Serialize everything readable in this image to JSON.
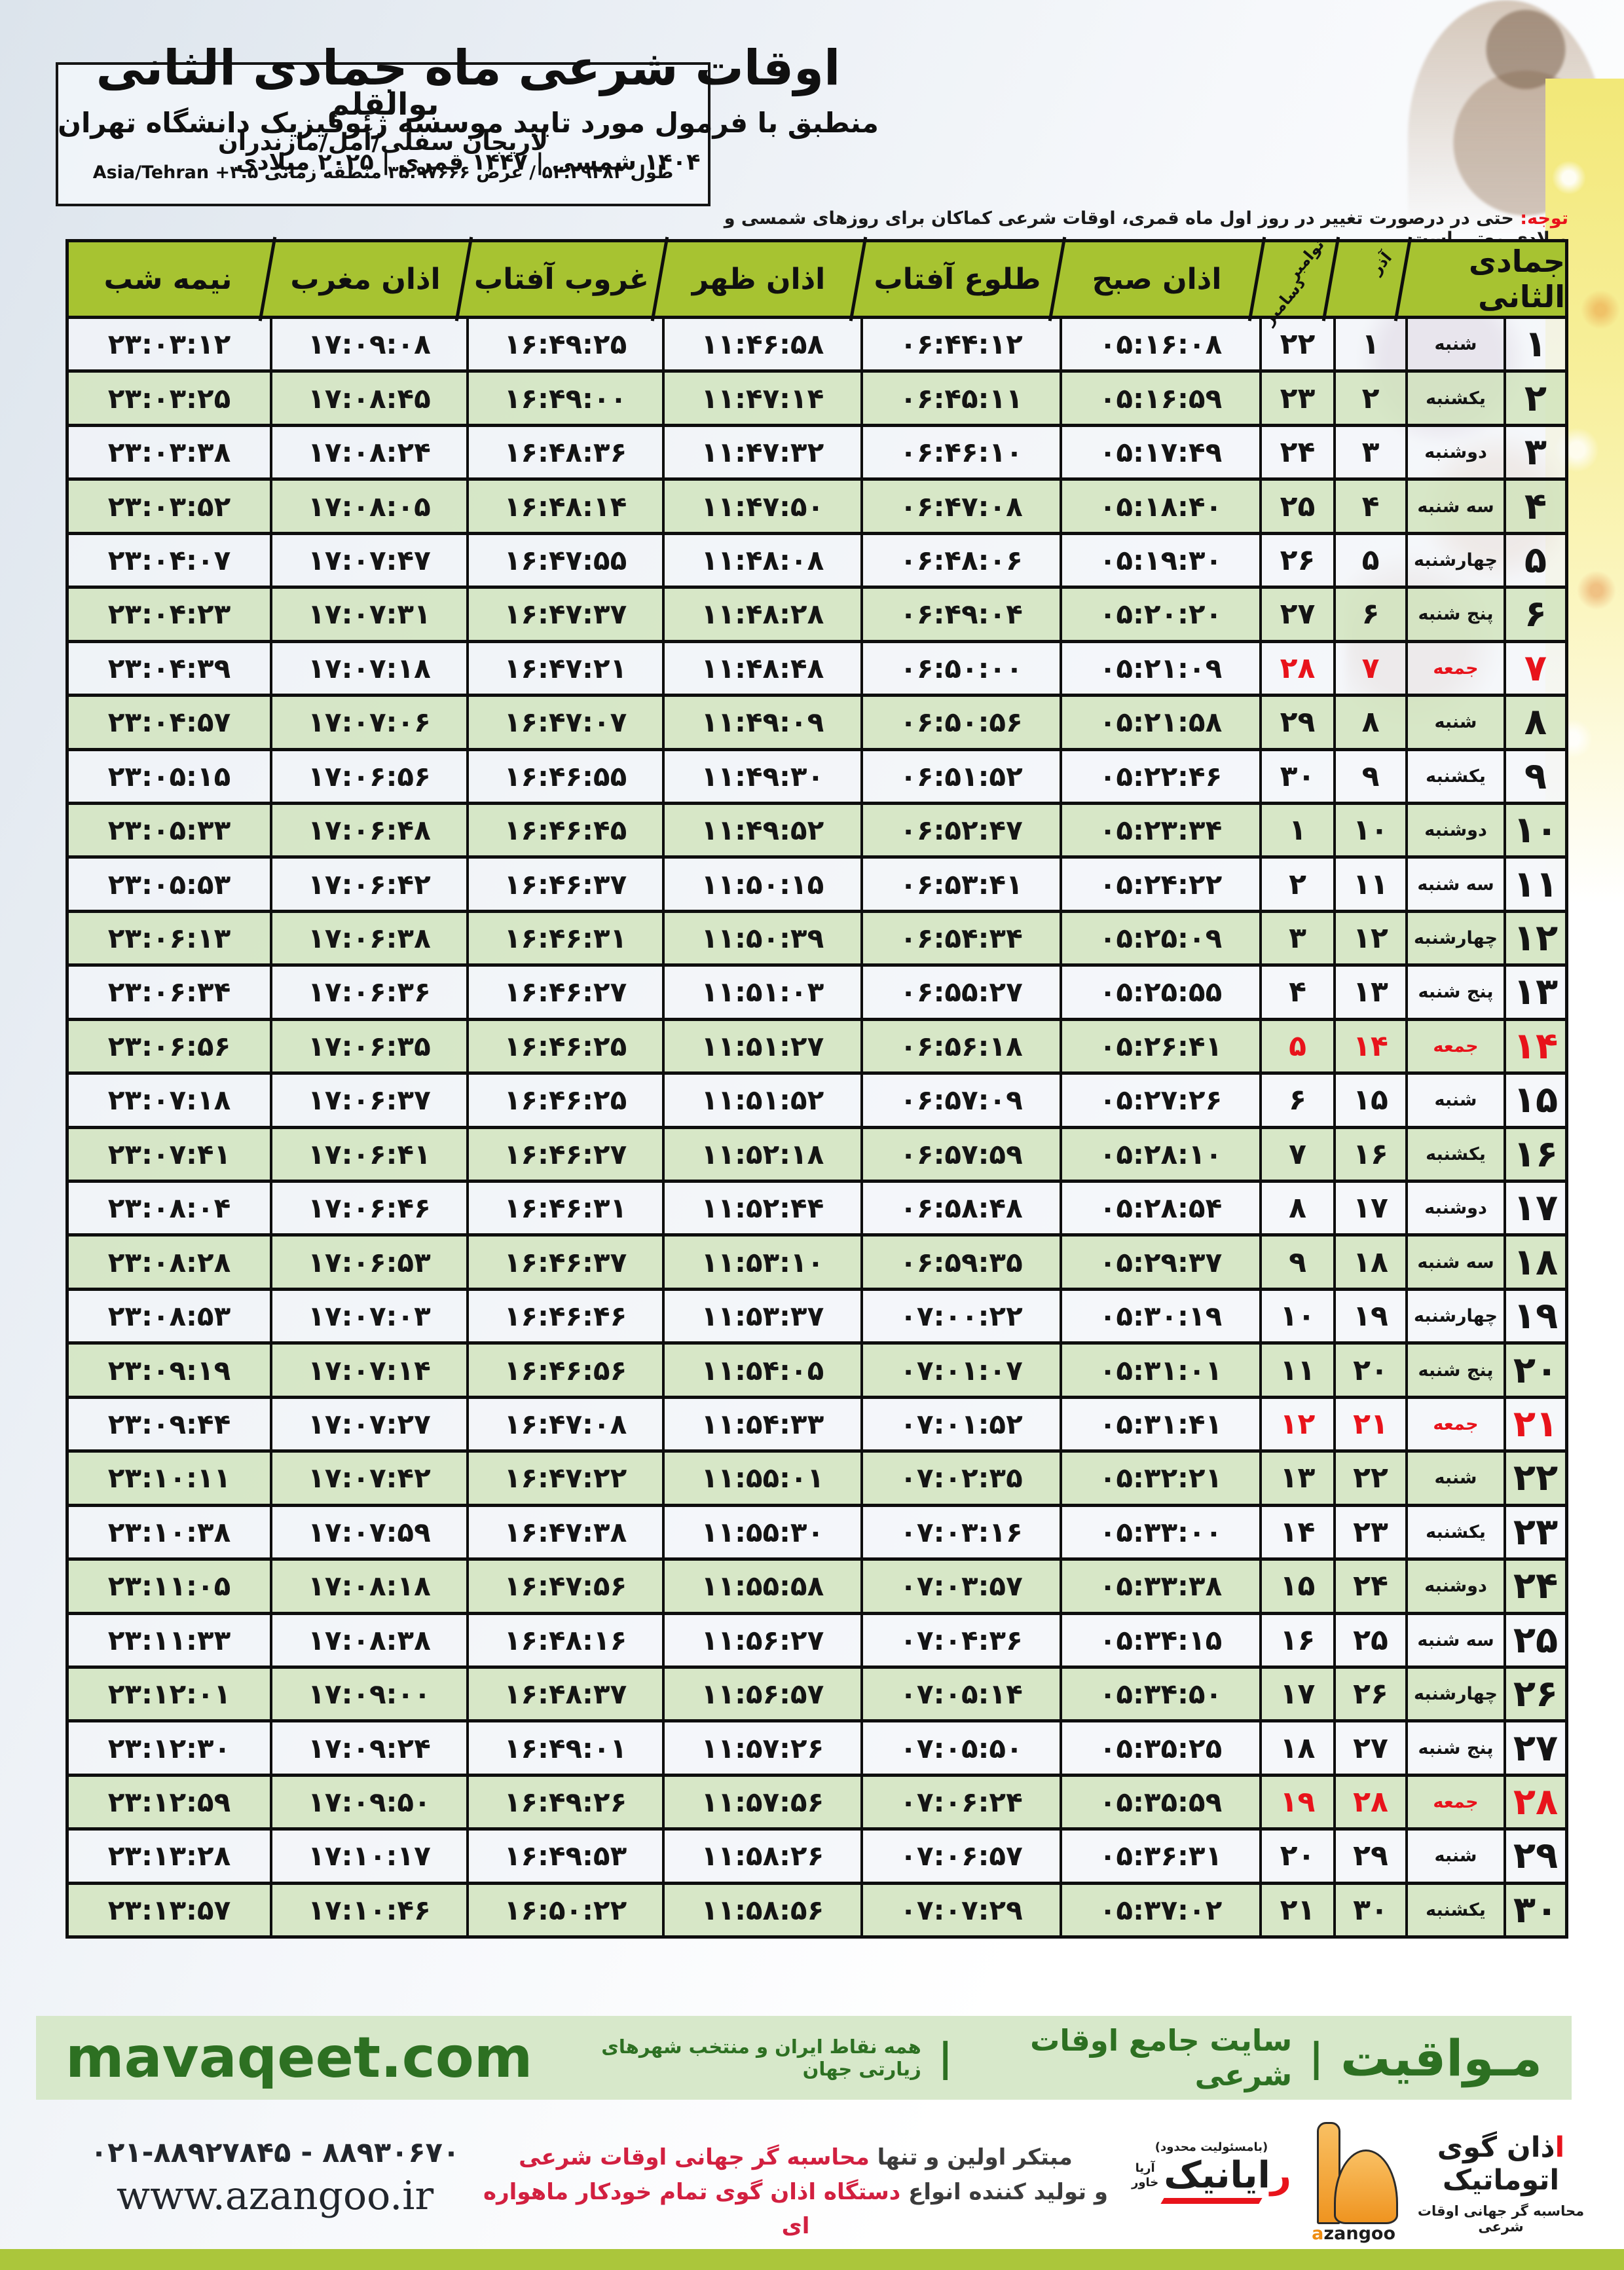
{
  "title_block": {
    "title": "اوقات شرعی ماه جمادی الثانی",
    "subtitle": "منطبق با فرمول مورد تایید موسسه ژئوفیزیک دانشگاه تهران",
    "date_line": "۱۴۰۴ شمسی | ۱۴۴۷ قمری | ۲۰۲۵ میلادی"
  },
  "location_box": {
    "name": "بوالقلم",
    "region": "لاریجان سفلی/آمل/مازندران",
    "coords_rtl": "طول ۵۲.۲۹۴۸۳ / عرض ۳۵.۹۷۶۶۶ منطقه زمانی",
    "coords_ltr": "Asia/Tehran +۳.۵"
  },
  "notice": {
    "label": "توجه:",
    "text": " حتی در درصورت تغییر در روز اول ماه قمری، اوقات شرعی کماکان برای روزهای شمسی و میلادی معتبر است."
  },
  "table": {
    "headers": {
      "month": "جمادی الثانی",
      "azar": "آذر",
      "nov": "نوامبر",
      "dec": "دسامبر",
      "sobh": "اذان صبح",
      "tolu": "طلوع آفتاب",
      "zohr": "اذان ظهر",
      "ghorub": "غروب آفتاب",
      "maghreb": "اذان مغرب",
      "nimeshab": "نیمه شب"
    },
    "rows": [
      {
        "day": "۱",
        "weekday": "شنبه",
        "azar": "۱",
        "miladi": "۲۲",
        "sobh": "۰۵:۱۶:۰۸",
        "tolu": "۰۶:۴۴:۱۲",
        "zohr": "۱۱:۴۶:۵۸",
        "ghorub": "۱۶:۴۹:۲۵",
        "maghreb": "۱۷:۰۹:۰۸",
        "nimeshab": "۲۳:۰۳:۱۲",
        "friday": false
      },
      {
        "day": "۲",
        "weekday": "یکشنبه",
        "azar": "۲",
        "miladi": "۲۳",
        "sobh": "۰۵:۱۶:۵۹",
        "tolu": "۰۶:۴۵:۱۱",
        "zohr": "۱۱:۴۷:۱۴",
        "ghorub": "۱۶:۴۹:۰۰",
        "maghreb": "۱۷:۰۸:۴۵",
        "nimeshab": "۲۳:۰۳:۲۵",
        "friday": false
      },
      {
        "day": "۳",
        "weekday": "دوشنبه",
        "azar": "۳",
        "miladi": "۲۴",
        "sobh": "۰۵:۱۷:۴۹",
        "tolu": "۰۶:۴۶:۱۰",
        "zohr": "۱۱:۴۷:۳۲",
        "ghorub": "۱۶:۴۸:۳۶",
        "maghreb": "۱۷:۰۸:۲۴",
        "nimeshab": "۲۳:۰۳:۳۸",
        "friday": false
      },
      {
        "day": "۴",
        "weekday": "سه شنبه",
        "azar": "۴",
        "miladi": "۲۵",
        "sobh": "۰۵:۱۸:۴۰",
        "tolu": "۰۶:۴۷:۰۸",
        "zohr": "۱۱:۴۷:۵۰",
        "ghorub": "۱۶:۴۸:۱۴",
        "maghreb": "۱۷:۰۸:۰۵",
        "nimeshab": "۲۳:۰۳:۵۲",
        "friday": false
      },
      {
        "day": "۵",
        "weekday": "چهارشنبه",
        "azar": "۵",
        "miladi": "۲۶",
        "sobh": "۰۵:۱۹:۳۰",
        "tolu": "۰۶:۴۸:۰۶",
        "zohr": "۱۱:۴۸:۰۸",
        "ghorub": "۱۶:۴۷:۵۵",
        "maghreb": "۱۷:۰۷:۴۷",
        "nimeshab": "۲۳:۰۴:۰۷",
        "friday": false
      },
      {
        "day": "۶",
        "weekday": "پنج شنبه",
        "azar": "۶",
        "miladi": "۲۷",
        "sobh": "۰۵:۲۰:۲۰",
        "tolu": "۰۶:۴۹:۰۴",
        "zohr": "۱۱:۴۸:۲۸",
        "ghorub": "۱۶:۴۷:۳۷",
        "maghreb": "۱۷:۰۷:۳۱",
        "nimeshab": "۲۳:۰۴:۲۳",
        "friday": false
      },
      {
        "day": "۷",
        "weekday": "جمعه",
        "azar": "۷",
        "miladi": "۲۸",
        "sobh": "۰۵:۲۱:۰۹",
        "tolu": "۰۶:۵۰:۰۰",
        "zohr": "۱۱:۴۸:۴۸",
        "ghorub": "۱۶:۴۷:۲۱",
        "maghreb": "۱۷:۰۷:۱۸",
        "nimeshab": "۲۳:۰۴:۳۹",
        "friday": true
      },
      {
        "day": "۸",
        "weekday": "شنبه",
        "azar": "۸",
        "miladi": "۲۹",
        "sobh": "۰۵:۲۱:۵۸",
        "tolu": "۰۶:۵۰:۵۶",
        "zohr": "۱۱:۴۹:۰۹",
        "ghorub": "۱۶:۴۷:۰۷",
        "maghreb": "۱۷:۰۷:۰۶",
        "nimeshab": "۲۳:۰۴:۵۷",
        "friday": false
      },
      {
        "day": "۹",
        "weekday": "یکشنبه",
        "azar": "۹",
        "miladi": "۳۰",
        "sobh": "۰۵:۲۲:۴۶",
        "tolu": "۰۶:۵۱:۵۲",
        "zohr": "۱۱:۴۹:۳۰",
        "ghorub": "۱۶:۴۶:۵۵",
        "maghreb": "۱۷:۰۶:۵۶",
        "nimeshab": "۲۳:۰۵:۱۵",
        "friday": false
      },
      {
        "day": "۱۰",
        "weekday": "دوشنبه",
        "azar": "۱۰",
        "miladi": "۱",
        "sobh": "۰۵:۲۳:۳۴",
        "tolu": "۰۶:۵۲:۴۷",
        "zohr": "۱۱:۴۹:۵۲",
        "ghorub": "۱۶:۴۶:۴۵",
        "maghreb": "۱۷:۰۶:۴۸",
        "nimeshab": "۲۳:۰۵:۳۳",
        "friday": false
      },
      {
        "day": "۱۱",
        "weekday": "سه شنبه",
        "azar": "۱۱",
        "miladi": "۲",
        "sobh": "۰۵:۲۴:۲۲",
        "tolu": "۰۶:۵۳:۴۱",
        "zohr": "۱۱:۵۰:۱۵",
        "ghorub": "۱۶:۴۶:۳۷",
        "maghreb": "۱۷:۰۶:۴۲",
        "nimeshab": "۲۳:۰۵:۵۳",
        "friday": false
      },
      {
        "day": "۱۲",
        "weekday": "چهارشنبه",
        "azar": "۱۲",
        "miladi": "۳",
        "sobh": "۰۵:۲۵:۰۹",
        "tolu": "۰۶:۵۴:۳۴",
        "zohr": "۱۱:۵۰:۳۹",
        "ghorub": "۱۶:۴۶:۳۱",
        "maghreb": "۱۷:۰۶:۳۸",
        "nimeshab": "۲۳:۰۶:۱۳",
        "friday": false
      },
      {
        "day": "۱۳",
        "weekday": "پنج شنبه",
        "azar": "۱۳",
        "miladi": "۴",
        "sobh": "۰۵:۲۵:۵۵",
        "tolu": "۰۶:۵۵:۲۷",
        "zohr": "۱۱:۵۱:۰۳",
        "ghorub": "۱۶:۴۶:۲۷",
        "maghreb": "۱۷:۰۶:۳۶",
        "nimeshab": "۲۳:۰۶:۳۴",
        "friday": false
      },
      {
        "day": "۱۴",
        "weekday": "جمعه",
        "azar": "۱۴",
        "miladi": "۵",
        "sobh": "۰۵:۲۶:۴۱",
        "tolu": "۰۶:۵۶:۱۸",
        "zohr": "۱۱:۵۱:۲۷",
        "ghorub": "۱۶:۴۶:۲۵",
        "maghreb": "۱۷:۰۶:۳۵",
        "nimeshab": "۲۳:۰۶:۵۶",
        "friday": true
      },
      {
        "day": "۱۵",
        "weekday": "شنبه",
        "azar": "۱۵",
        "miladi": "۶",
        "sobh": "۰۵:۲۷:۲۶",
        "tolu": "۰۶:۵۷:۰۹",
        "zohr": "۱۱:۵۱:۵۲",
        "ghorub": "۱۶:۴۶:۲۵",
        "maghreb": "۱۷:۰۶:۳۷",
        "nimeshab": "۲۳:۰۷:۱۸",
        "friday": false
      },
      {
        "day": "۱۶",
        "weekday": "یکشنبه",
        "azar": "۱۶",
        "miladi": "۷",
        "sobh": "۰۵:۲۸:۱۰",
        "tolu": "۰۶:۵۷:۵۹",
        "zohr": "۱۱:۵۲:۱۸",
        "ghorub": "۱۶:۴۶:۲۷",
        "maghreb": "۱۷:۰۶:۴۱",
        "nimeshab": "۲۳:۰۷:۴۱",
        "friday": false
      },
      {
        "day": "۱۷",
        "weekday": "دوشنبه",
        "azar": "۱۷",
        "miladi": "۸",
        "sobh": "۰۵:۲۸:۵۴",
        "tolu": "۰۶:۵۸:۴۸",
        "zohr": "۱۱:۵۲:۴۴",
        "ghorub": "۱۶:۴۶:۳۱",
        "maghreb": "۱۷:۰۶:۴۶",
        "nimeshab": "۲۳:۰۸:۰۴",
        "friday": false
      },
      {
        "day": "۱۸",
        "weekday": "سه شنبه",
        "azar": "۱۸",
        "miladi": "۹",
        "sobh": "۰۵:۲۹:۳۷",
        "tolu": "۰۶:۵۹:۳۵",
        "zohr": "۱۱:۵۳:۱۰",
        "ghorub": "۱۶:۴۶:۳۷",
        "maghreb": "۱۷:۰۶:۵۳",
        "nimeshab": "۲۳:۰۸:۲۸",
        "friday": false
      },
      {
        "day": "۱۹",
        "weekday": "چهارشنبه",
        "azar": "۱۹",
        "miladi": "۱۰",
        "sobh": "۰۵:۳۰:۱۹",
        "tolu": "۰۷:۰۰:۲۲",
        "zohr": "۱۱:۵۳:۳۷",
        "ghorub": "۱۶:۴۶:۴۶",
        "maghreb": "۱۷:۰۷:۰۳",
        "nimeshab": "۲۳:۰۸:۵۳",
        "friday": false
      },
      {
        "day": "۲۰",
        "weekday": "پنج شنبه",
        "azar": "۲۰",
        "miladi": "۱۱",
        "sobh": "۰۵:۳۱:۰۱",
        "tolu": "۰۷:۰۱:۰۷",
        "zohr": "۱۱:۵۴:۰۵",
        "ghorub": "۱۶:۴۶:۵۶",
        "maghreb": "۱۷:۰۷:۱۴",
        "nimeshab": "۲۳:۰۹:۱۹",
        "friday": false
      },
      {
        "day": "۲۱",
        "weekday": "جمعه",
        "azar": "۲۱",
        "miladi": "۱۲",
        "sobh": "۰۵:۳۱:۴۱",
        "tolu": "۰۷:۰۱:۵۲",
        "zohr": "۱۱:۵۴:۳۳",
        "ghorub": "۱۶:۴۷:۰۸",
        "maghreb": "۱۷:۰۷:۲۷",
        "nimeshab": "۲۳:۰۹:۴۴",
        "friday": true
      },
      {
        "day": "۲۲",
        "weekday": "شنبه",
        "azar": "۲۲",
        "miladi": "۱۳",
        "sobh": "۰۵:۳۲:۲۱",
        "tolu": "۰۷:۰۲:۳۵",
        "zohr": "۱۱:۵۵:۰۱",
        "ghorub": "۱۶:۴۷:۲۲",
        "maghreb": "۱۷:۰۷:۴۲",
        "nimeshab": "۲۳:۱۰:۱۱",
        "friday": false
      },
      {
        "day": "۲۳",
        "weekday": "یکشنبه",
        "azar": "۲۳",
        "miladi": "۱۴",
        "sobh": "۰۵:۳۳:۰۰",
        "tolu": "۰۷:۰۳:۱۶",
        "zohr": "۱۱:۵۵:۳۰",
        "ghorub": "۱۶:۴۷:۳۸",
        "maghreb": "۱۷:۰۷:۵۹",
        "nimeshab": "۲۳:۱۰:۳۸",
        "friday": false
      },
      {
        "day": "۲۴",
        "weekday": "دوشنبه",
        "azar": "۲۴",
        "miladi": "۱۵",
        "sobh": "۰۵:۳۳:۳۸",
        "tolu": "۰۷:۰۳:۵۷",
        "zohr": "۱۱:۵۵:۵۸",
        "ghorub": "۱۶:۴۷:۵۶",
        "maghreb": "۱۷:۰۸:۱۸",
        "nimeshab": "۲۳:۱۱:۰۵",
        "friday": false
      },
      {
        "day": "۲۵",
        "weekday": "سه شنبه",
        "azar": "۲۵",
        "miladi": "۱۶",
        "sobh": "۰۵:۳۴:۱۵",
        "tolu": "۰۷:۰۴:۳۶",
        "zohr": "۱۱:۵۶:۲۷",
        "ghorub": "۱۶:۴۸:۱۶",
        "maghreb": "۱۷:۰۸:۳۸",
        "nimeshab": "۲۳:۱۱:۳۳",
        "friday": false
      },
      {
        "day": "۲۶",
        "weekday": "چهارشنبه",
        "azar": "۲۶",
        "miladi": "۱۷",
        "sobh": "۰۵:۳۴:۵۰",
        "tolu": "۰۷:۰۵:۱۴",
        "zohr": "۱۱:۵۶:۵۷",
        "ghorub": "۱۶:۴۸:۳۷",
        "maghreb": "۱۷:۰۹:۰۰",
        "nimeshab": "۲۳:۱۲:۰۱",
        "friday": false
      },
      {
        "day": "۲۷",
        "weekday": "پنج شنبه",
        "azar": "۲۷",
        "miladi": "۱۸",
        "sobh": "۰۵:۳۵:۲۵",
        "tolu": "۰۷:۰۵:۵۰",
        "zohr": "۱۱:۵۷:۲۶",
        "ghorub": "۱۶:۴۹:۰۱",
        "maghreb": "۱۷:۰۹:۲۴",
        "nimeshab": "۲۳:۱۲:۳۰",
        "friday": false
      },
      {
        "day": "۲۸",
        "weekday": "جمعه",
        "azar": "۲۸",
        "miladi": "۱۹",
        "sobh": "۰۵:۳۵:۵۹",
        "tolu": "۰۷:۰۶:۲۴",
        "zohr": "۱۱:۵۷:۵۶",
        "ghorub": "۱۶:۴۹:۲۶",
        "maghreb": "۱۷:۰۹:۵۰",
        "nimeshab": "۲۳:۱۲:۵۹",
        "friday": true
      },
      {
        "day": "۲۹",
        "weekday": "شنبه",
        "azar": "۲۹",
        "miladi": "۲۰",
        "sobh": "۰۵:۳۶:۳۱",
        "tolu": "۰۷:۰۶:۵۷",
        "zohr": "۱۱:۵۸:۲۶",
        "ghorub": "۱۶:۴۹:۵۳",
        "maghreb": "۱۷:۱۰:۱۷",
        "nimeshab": "۲۳:۱۳:۲۸",
        "friday": false
      },
      {
        "day": "۳۰",
        "weekday": "یکشنبه",
        "azar": "۳۰",
        "miladi": "۲۱",
        "sobh": "۰۵:۳۷:۰۲",
        "tolu": "۰۷:۰۷:۲۹",
        "zohr": "۱۱:۵۸:۵۶",
        "ghorub": "۱۶:۵۰:۲۲",
        "maghreb": "۱۷:۱۰:۴۶",
        "nimeshab": "۲۳:۱۳:۵۷",
        "friday": false
      }
    ]
  },
  "green_bar": {
    "brand": "مـواقیت",
    "sep": "|",
    "site_desc": "سایت جامع اوقات شرعی",
    "site_desc2": "همه نقاط ایران و منتخب شهرهای زیارتی جهان",
    "url": "mavaqeet.com"
  },
  "footer": {
    "phones": "۰۲۱-۸۸۹۲۷۸۴۵ - ۸۸۹۳۰۶۷۰",
    "website": "www.azangoo.ir",
    "promo_line1_dark": "مبتکر اولین و تنها ",
    "promo_line1_red": "محاسبه گر جهانی اوقات شرعی",
    "promo_line2_dark": "و تولید کننده انواع ",
    "promo_line2_red": "دستگاه اذان گوی تمام خودکار ماهواره ای",
    "azangoo_accent": "ا",
    "azangoo_fa": "ذان گوی اتوماتیک",
    "azangoo_sub": "محاسبه گر جهانی اوقات شرعی",
    "azangoo_en_a": "a",
    "azangoo_en_rest": "zangoo",
    "rayanik_top": "(بامسئولیت محدود)",
    "rayanik_name_red": "ر",
    "rayanik_name": "ایانیک",
    "rayanik_side1": "آریا",
    "rayanik_side2": "خاور"
  },
  "colors": {
    "header_green": "#a7c331",
    "row_green": "#d5e6c3",
    "friday_red": "#e8131b",
    "brand_green": "#2d7022",
    "strip_green": "#abc63b",
    "promo_red": "#d22040"
  }
}
